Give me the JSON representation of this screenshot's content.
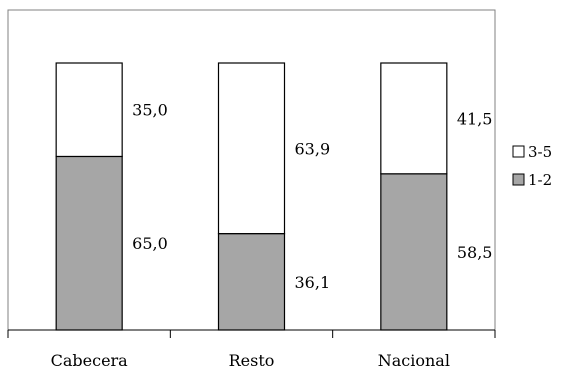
{
  "chart_data": {
    "type": "bar",
    "stacked": true,
    "percent": true,
    "categories": [
      "Cabecera",
      "Resto",
      "Nacional"
    ],
    "series": [
      {
        "name": "1-2",
        "values": [
          65.0,
          36.1,
          58.5
        ],
        "labels": [
          "65,0",
          "36,1",
          "58,5"
        ],
        "color": "#a6a6a6"
      },
      {
        "name": "3-5",
        "values": [
          35.0,
          63.9,
          41.5
        ],
        "labels": [
          "35,0",
          "63,9",
          "41,5"
        ],
        "color": "#ffffff"
      }
    ],
    "legend_order": [
      "3-5",
      "1-2"
    ],
    "ylim": [
      0,
      100
    ],
    "legend": "right",
    "grid": false,
    "title": "",
    "xlabel": "",
    "ylabel": ""
  }
}
